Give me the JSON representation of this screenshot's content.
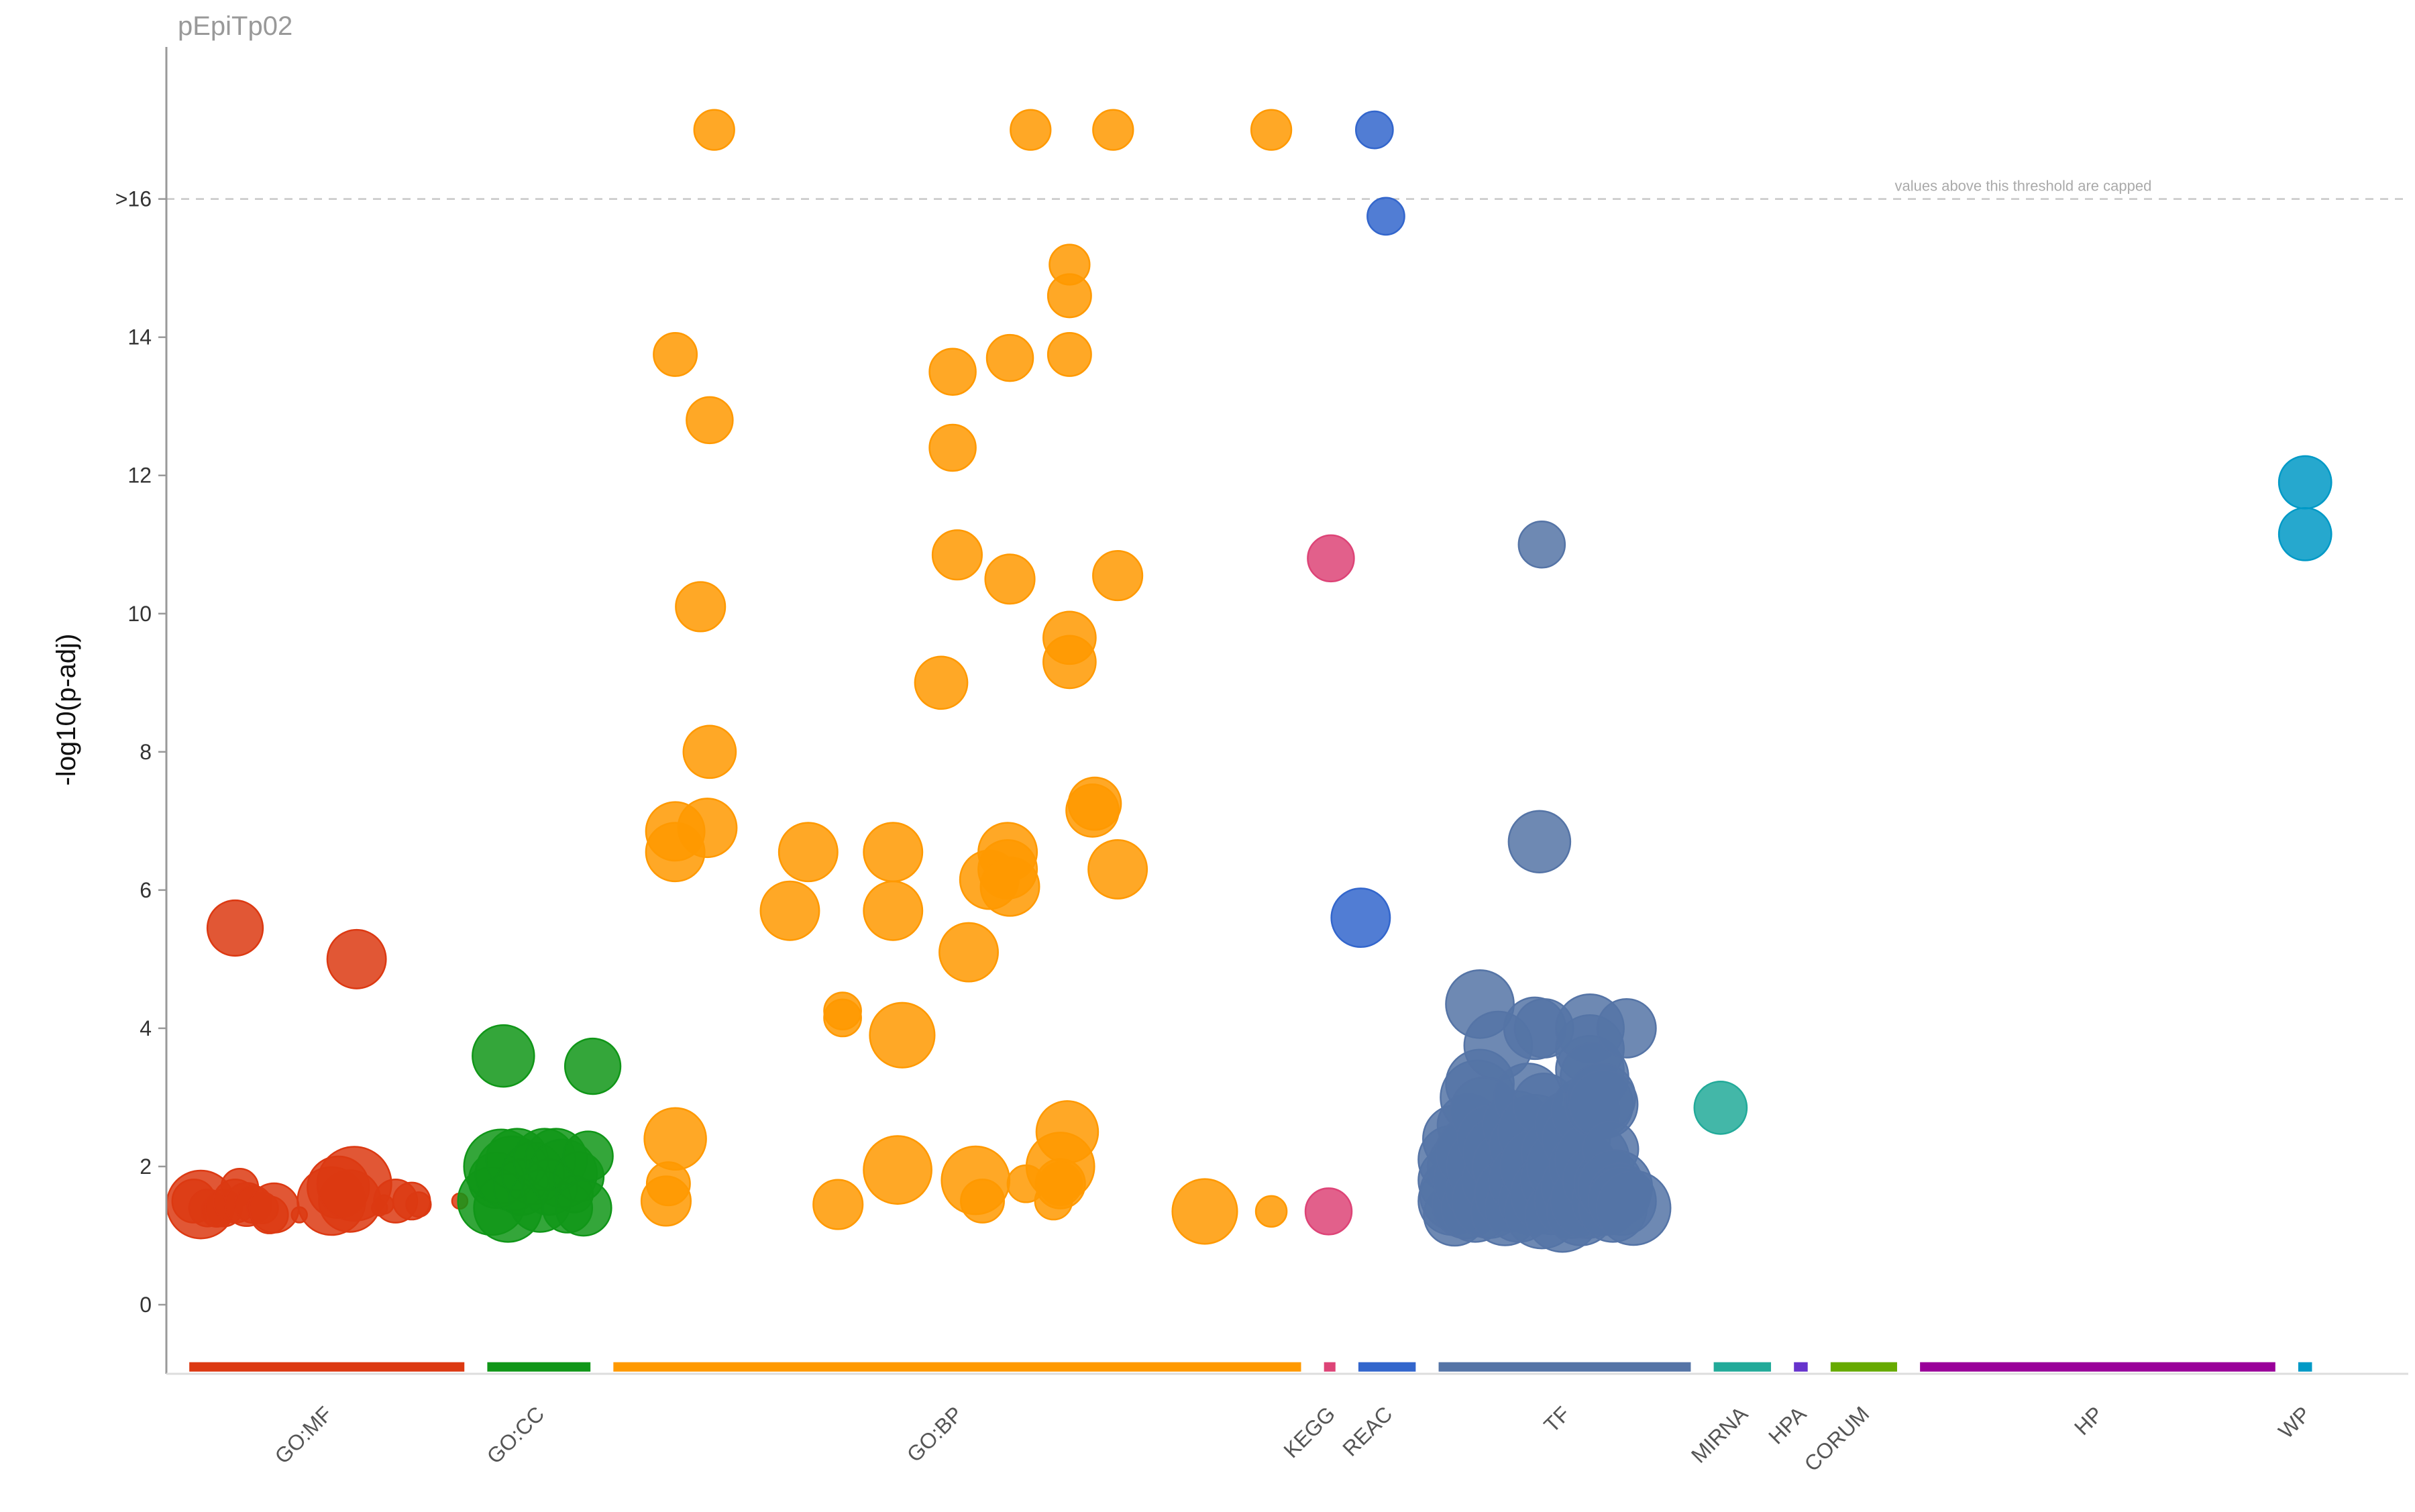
{
  "chart_data": {
    "type": "scatter",
    "title": "pEpiTp02",
    "ylabel": "-log10(p-adj)",
    "xlabel": "",
    "ylim": [
      -1,
      18.2
    ],
    "y_ticks": [
      {
        "value": 0,
        "label": "0"
      },
      {
        "value": 2,
        "label": "2"
      },
      {
        "value": 4,
        "label": "4"
      },
      {
        "value": 6,
        "label": "6"
      },
      {
        "value": 8,
        "label": "8"
      },
      {
        "value": 10,
        "label": "10"
      },
      {
        "value": 12,
        "label": "12"
      },
      {
        "value": 14,
        "label": "14"
      },
      {
        "value": 16,
        "label": ">16"
      }
    ],
    "cap_threshold": 16,
    "cap_note": "values above this threshold are capped",
    "grid": false,
    "sources": [
      {
        "name": "GO:MF",
        "color": "#dc3912",
        "range": [
          0.0,
          0.12
        ]
      },
      {
        "name": "GO:CC",
        "color": "#109618",
        "range": [
          0.13,
          0.175
        ]
      },
      {
        "name": "GO:BP",
        "color": "#ff9900",
        "range": [
          0.185,
          0.485
        ]
      },
      {
        "name": "KEGG",
        "color": "#dd4477",
        "range": [
          0.495,
          0.5
        ]
      },
      {
        "name": "REAC",
        "color": "#3366cc",
        "range": [
          0.51,
          0.535
        ]
      },
      {
        "name": "TF",
        "color": "#5574a6",
        "range": [
          0.545,
          0.655
        ]
      },
      {
        "name": "MIRNA",
        "color": "#22aa99",
        "range": [
          0.665,
          0.69
        ]
      },
      {
        "name": "HPA",
        "color": "#6633cc",
        "range": [
          0.7,
          0.706
        ]
      },
      {
        "name": "CORUM",
        "color": "#66aa00",
        "range": [
          0.716,
          0.745
        ]
      },
      {
        "name": "HP",
        "color": "#990099",
        "range": [
          0.755,
          0.91
        ]
      },
      {
        "name": "WP",
        "color": "#0099c6",
        "range": [
          0.92,
          0.926
        ]
      }
    ],
    "x_range": [
      -0.01,
      0.968
    ],
    "series": [
      {
        "name": "GO:MF",
        "points": [
          [
            0.002,
            1.5,
            14
          ],
          [
            0.005,
            1.45,
            22
          ],
          [
            0.008,
            1.4,
            12
          ],
          [
            0.012,
            1.35,
            10
          ],
          [
            0.015,
            1.4,
            12
          ],
          [
            0.02,
            1.5,
            14
          ],
          [
            0.022,
            1.7,
            12
          ],
          [
            0.025,
            1.45,
            14
          ],
          [
            0.028,
            1.45,
            12
          ],
          [
            0.032,
            1.4,
            10
          ],
          [
            0.035,
            1.3,
            12
          ],
          [
            0.037,
            1.4,
            16
          ],
          [
            0.02,
            5.45,
            18
          ],
          [
            0.048,
            1.3,
            5
          ],
          [
            0.062,
            1.5,
            22
          ],
          [
            0.065,
            1.7,
            20
          ],
          [
            0.07,
            1.5,
            20
          ],
          [
            0.072,
            1.75,
            24
          ],
          [
            0.073,
            5.0,
            19
          ],
          [
            0.083,
            1.4,
            5
          ],
          [
            0.085,
            1.45,
            6
          ],
          [
            0.09,
            1.5,
            14
          ],
          [
            0.097,
            1.5,
            12
          ],
          [
            0.1,
            1.45,
            8
          ],
          [
            0.118,
            1.5,
            5
          ]
        ]
      },
      {
        "name": "GO:CC",
        "points": [
          [
            0.132,
            1.5,
            22
          ],
          [
            0.134,
            1.8,
            18
          ],
          [
            0.136,
            2.0,
            24
          ],
          [
            0.137,
            3.6,
            20
          ],
          [
            0.139,
            1.4,
            22
          ],
          [
            0.141,
            1.9,
            24
          ],
          [
            0.143,
            2.1,
            20
          ],
          [
            0.145,
            1.7,
            18
          ],
          [
            0.15,
            1.9,
            20
          ],
          [
            0.153,
            1.5,
            20
          ],
          [
            0.155,
            2.1,
            20
          ],
          [
            0.157,
            1.7,
            18
          ],
          [
            0.16,
            2.1,
            20
          ],
          [
            0.163,
            1.9,
            22
          ],
          [
            0.165,
            1.4,
            16
          ],
          [
            0.168,
            1.6,
            12
          ],
          [
            0.17,
            1.85,
            16
          ],
          [
            0.172,
            1.4,
            18
          ],
          [
            0.174,
            2.15,
            16
          ],
          [
            0.176,
            3.45,
            18
          ]
        ]
      },
      {
        "name": "GO:BP",
        "points": [
          [
            0.208,
            1.5,
            16
          ],
          [
            0.209,
            1.75,
            14
          ],
          [
            0.212,
            2.4,
            20
          ],
          [
            0.212,
            6.55,
            19
          ],
          [
            0.212,
            6.85,
            19
          ],
          [
            0.212,
            13.75,
            14
          ],
          [
            0.223,
            10.1,
            16
          ],
          [
            0.226,
            6.9,
            19
          ],
          [
            0.227,
            8.0,
            17
          ],
          [
            0.227,
            12.8,
            15
          ],
          [
            0.229,
            17.0,
            13
          ],
          [
            0.262,
            5.7,
            19
          ],
          [
            0.27,
            6.55,
            19
          ],
          [
            0.285,
            4.15,
            12
          ],
          [
            0.285,
            4.25,
            12
          ],
          [
            0.283,
            1.45,
            16
          ],
          [
            0.307,
            6.55,
            19
          ],
          [
            0.307,
            5.7,
            19
          ],
          [
            0.309,
            1.95,
            22
          ],
          [
            0.311,
            3.9,
            21
          ],
          [
            0.328,
            9.0,
            17
          ],
          [
            0.333,
            13.5,
            15
          ],
          [
            0.333,
            12.4,
            15
          ],
          [
            0.335,
            10.85,
            16
          ],
          [
            0.34,
            5.1,
            19
          ],
          [
            0.343,
            1.8,
            22
          ],
          [
            0.346,
            1.5,
            14
          ],
          [
            0.349,
            6.15,
            19
          ],
          [
            0.357,
            6.55,
            19
          ],
          [
            0.357,
            6.3,
            19
          ],
          [
            0.358,
            6.05,
            19
          ],
          [
            0.358,
            10.5,
            16
          ],
          [
            0.358,
            13.7,
            15
          ],
          [
            0.365,
            1.75,
            12
          ],
          [
            0.367,
            17.0,
            13
          ],
          [
            0.377,
            1.5,
            12
          ],
          [
            0.38,
            2.0,
            22
          ],
          [
            0.38,
            1.75,
            14
          ],
          [
            0.38,
            1.75,
            16
          ],
          [
            0.383,
            2.5,
            20
          ],
          [
            0.384,
            9.65,
            17
          ],
          [
            0.384,
            9.3,
            17
          ],
          [
            0.384,
            13.75,
            14
          ],
          [
            0.384,
            14.6,
            14
          ],
          [
            0.384,
            15.05,
            13
          ],
          [
            0.394,
            7.15,
            17
          ],
          [
            0.395,
            7.25,
            17
          ],
          [
            0.403,
            17.0,
            13
          ],
          [
            0.405,
            6.3,
            19
          ],
          [
            0.405,
            10.55,
            16
          ],
          [
            0.443,
            1.35,
            21
          ],
          [
            0.472,
            1.35,
            10
          ],
          [
            0.472,
            17.0,
            13
          ]
        ]
      },
      {
        "name": "KEGG",
        "points": [
          [
            0.497,
            1.35,
            15
          ],
          [
            0.498,
            10.8,
            15
          ]
        ]
      },
      {
        "name": "REAC",
        "points": [
          [
            0.511,
            5.6,
            19
          ],
          [
            0.517,
            17.0,
            12
          ],
          [
            0.522,
            15.75,
            12
          ]
        ]
      },
      {
        "name": "TF",
        "points": [
          [
            0.551,
            1.5,
            22
          ],
          [
            0.551,
            1.8,
            22
          ],
          [
            0.551,
            2.1,
            22
          ],
          [
            0.552,
            1.3,
            20
          ],
          [
            0.553,
            2.4,
            22
          ],
          [
            0.553,
            1.6,
            24
          ],
          [
            0.555,
            2.0,
            22
          ],
          [
            0.557,
            1.45,
            22
          ],
          [
            0.558,
            2.6,
            20
          ],
          [
            0.559,
            1.8,
            24
          ],
          [
            0.56,
            2.2,
            24
          ],
          [
            0.561,
            1.4,
            22
          ],
          [
            0.562,
            3.0,
            24
          ],
          [
            0.563,
            3.2,
            22
          ],
          [
            0.563,
            1.65,
            22
          ],
          [
            0.563,
            4.35,
            22
          ],
          [
            0.565,
            2.8,
            22
          ],
          [
            0.566,
            2.0,
            26
          ],
          [
            0.567,
            1.5,
            24
          ],
          [
            0.568,
            2.4,
            22
          ],
          [
            0.57,
            1.8,
            22
          ],
          [
            0.571,
            3.75,
            22
          ],
          [
            0.572,
            2.2,
            24
          ],
          [
            0.574,
            1.35,
            22
          ],
          [
            0.576,
            2.0,
            24
          ],
          [
            0.577,
            1.6,
            24
          ],
          [
            0.579,
            2.6,
            22
          ],
          [
            0.58,
            1.4,
            22
          ],
          [
            0.582,
            2.3,
            22
          ],
          [
            0.583,
            1.8,
            24
          ],
          [
            0.584,
            3.0,
            22
          ],
          [
            0.586,
            1.5,
            22
          ],
          [
            0.587,
            2.5,
            24
          ],
          [
            0.587,
            4.0,
            20
          ],
          [
            0.588,
            2.0,
            24
          ],
          [
            0.589,
            6.7,
            20
          ],
          [
            0.59,
            1.35,
            24
          ],
          [
            0.59,
            11.0,
            15
          ],
          [
            0.591,
            2.9,
            20
          ],
          [
            0.591,
            4.0,
            19
          ],
          [
            0.594,
            1.6,
            26
          ],
          [
            0.596,
            2.2,
            22
          ],
          [
            0.597,
            1.8,
            24
          ],
          [
            0.599,
            1.3,
            24
          ],
          [
            0.601,
            2.0,
            26
          ],
          [
            0.602,
            2.6,
            22
          ],
          [
            0.603,
            1.5,
            24
          ],
          [
            0.605,
            2.4,
            22
          ],
          [
            0.606,
            1.7,
            24
          ],
          [
            0.607,
            1.35,
            22
          ],
          [
            0.608,
            2.0,
            22
          ],
          [
            0.609,
            2.8,
            22
          ],
          [
            0.61,
            1.5,
            24
          ],
          [
            0.611,
            3.4,
            22
          ],
          [
            0.611,
            3.7,
            22
          ],
          [
            0.611,
            4.0,
            22
          ],
          [
            0.612,
            2.1,
            24
          ],
          [
            0.613,
            3.3,
            22
          ],
          [
            0.614,
            1.8,
            22
          ],
          [
            0.615,
            2.9,
            22
          ],
          [
            0.616,
            3.0,
            22
          ],
          [
            0.617,
            2.9,
            22
          ],
          [
            0.618,
            1.5,
            22
          ],
          [
            0.619,
            1.75,
            22
          ],
          [
            0.62,
            2.25,
            18
          ],
          [
            0.621,
            1.4,
            22
          ],
          [
            0.622,
            1.7,
            24
          ],
          [
            0.624,
            1.6,
            20
          ],
          [
            0.625,
            1.5,
            22
          ],
          [
            0.627,
            4.0,
            19
          ],
          [
            0.63,
            1.4,
            24
          ]
        ]
      },
      {
        "name": "MIRNA",
        "points": [
          [
            0.668,
            2.85,
            17
          ]
        ]
      },
      {
        "name": "WP",
        "points": [
          [
            0.923,
            11.9,
            17
          ],
          [
            0.923,
            11.15,
            17
          ]
        ]
      }
    ]
  }
}
